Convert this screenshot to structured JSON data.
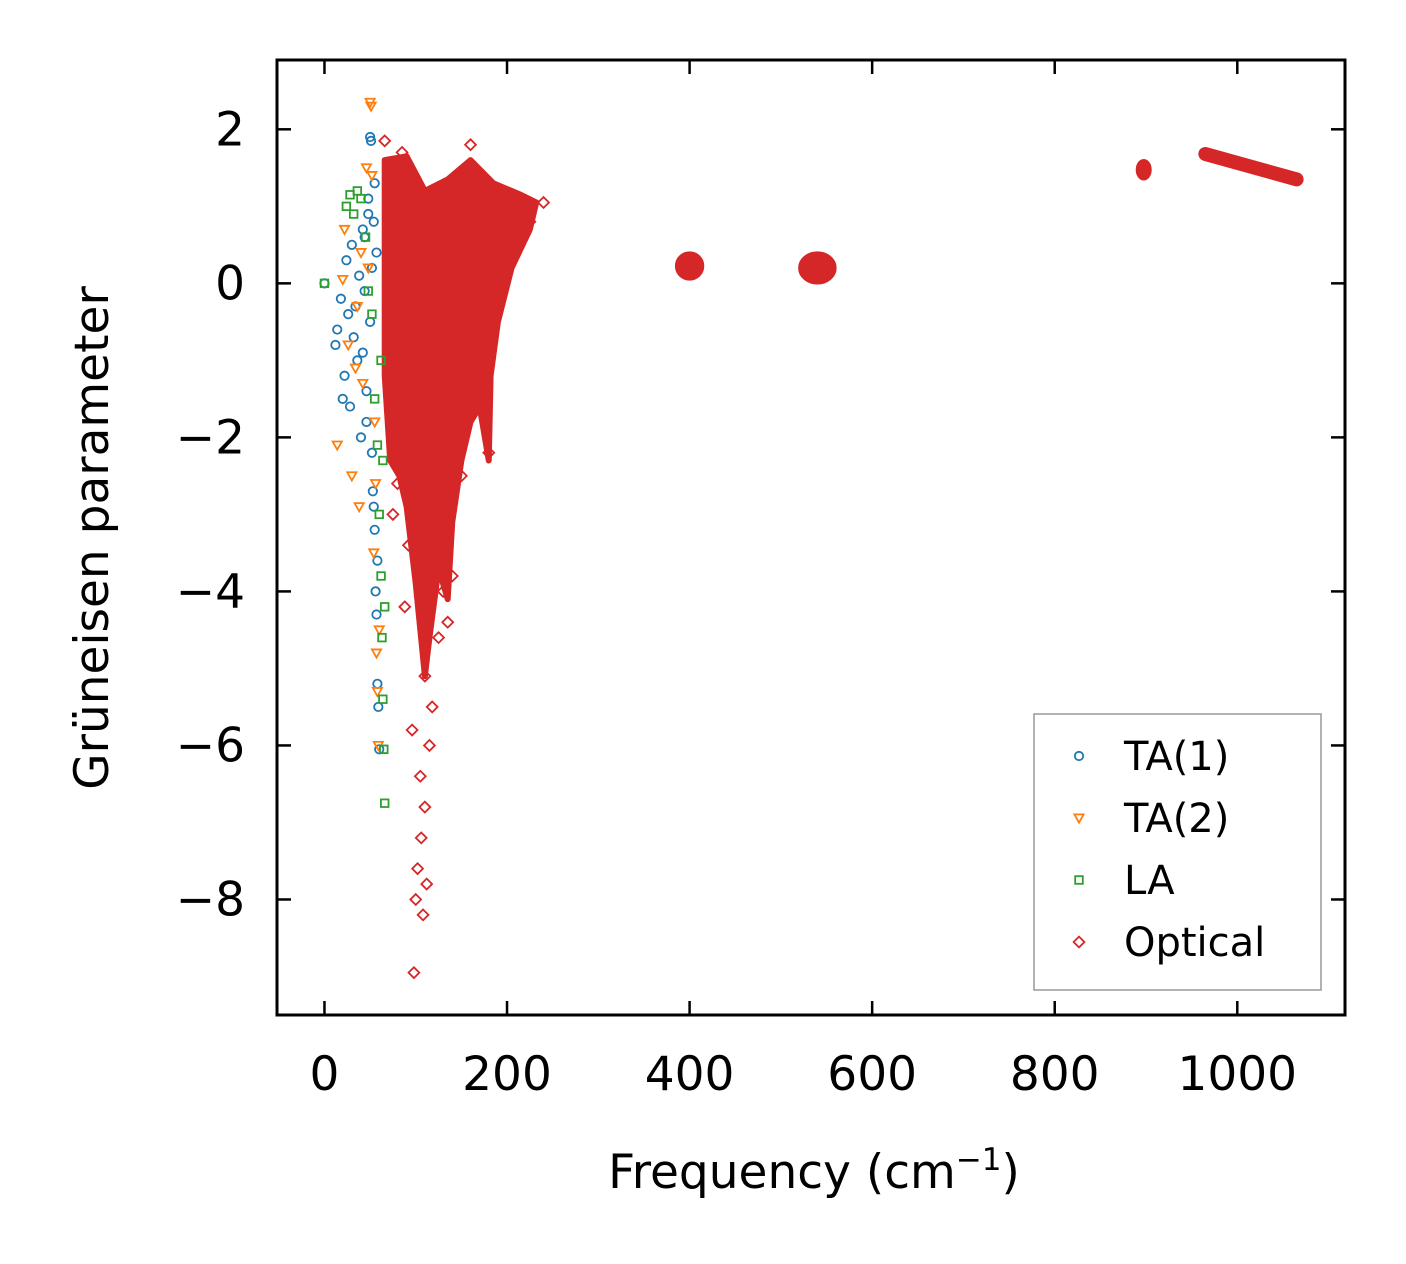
{
  "chart_data": {
    "type": "scatter",
    "title": "",
    "xlabel": "Frequency (cm",
    "xlabel_sup": "−1",
    "xlabel_suffix": ")",
    "ylabel": "Grüneisen parameter",
    "xlim": [
      -52,
      1118
    ],
    "ylim": [
      -9.5,
      2.9
    ],
    "x_ticks": [
      0,
      200,
      400,
      600,
      800,
      1000
    ],
    "x_tick_labels": [
      "0",
      "200",
      "400",
      "600",
      "800",
      "1000"
    ],
    "y_ticks": [
      2,
      0,
      -2,
      -4,
      -6,
      -8
    ],
    "y_tick_labels": [
      "2",
      "0",
      "−2",
      "−4",
      "−6",
      "−8"
    ],
    "grid": false,
    "legend_position": "bottom-right",
    "series": [
      {
        "name": "TA(1)",
        "marker": "circle",
        "color": "#1f77b4",
        "points": [
          [
            0,
            0
          ],
          [
            12,
            -0.8
          ],
          [
            14,
            -0.6
          ],
          [
            18,
            -0.2
          ],
          [
            20,
            -1.5
          ],
          [
            22,
            -1.2
          ],
          [
            24,
            0.3
          ],
          [
            26,
            -0.4
          ],
          [
            28,
            -1.6
          ],
          [
            30,
            0.5
          ],
          [
            32,
            -0.7
          ],
          [
            34,
            -0.3
          ],
          [
            36,
            -1.0
          ],
          [
            38,
            0.1
          ],
          [
            40,
            -2.0
          ],
          [
            42,
            -0.9
          ],
          [
            44,
            0.6
          ],
          [
            46,
            -1.4
          ],
          [
            48,
            1.1
          ],
          [
            50,
            1.9
          ],
          [
            51,
            1.85
          ],
          [
            52,
            -2.2
          ],
          [
            53,
            -2.7
          ],
          [
            54,
            0.8
          ],
          [
            55,
            -3.2
          ],
          [
            56,
            -4.0
          ],
          [
            57,
            -4.3
          ],
          [
            58,
            -5.2
          ],
          [
            59,
            -5.5
          ],
          [
            60,
            -6.05
          ],
          [
            52,
            0.2
          ],
          [
            50,
            -0.5
          ],
          [
            48,
            0.9
          ],
          [
            55,
            1.3
          ],
          [
            57,
            0.4
          ],
          [
            46,
            -1.8
          ],
          [
            54,
            -2.9
          ],
          [
            58,
            -3.6
          ],
          [
            44,
            -0.1
          ],
          [
            42,
            0.7
          ]
        ]
      },
      {
        "name": "TA(2)",
        "marker": "triangle-down",
        "color": "#ff7f0e",
        "points": [
          [
            14,
            -2.1
          ],
          [
            20,
            0.05
          ],
          [
            22,
            0.7
          ],
          [
            26,
            -0.8
          ],
          [
            30,
            -2.5
          ],
          [
            34,
            -1.1
          ],
          [
            38,
            -2.9
          ],
          [
            42,
            -1.3
          ],
          [
            46,
            1.5
          ],
          [
            50,
            2.35
          ],
          [
            51,
            2.3
          ],
          [
            52,
            1.4
          ],
          [
            54,
            -3.5
          ],
          [
            55,
            -1.8
          ],
          [
            56,
            -2.6
          ],
          [
            57,
            -4.8
          ],
          [
            58,
            -5.3
          ],
          [
            59,
            -6.0
          ],
          [
            60,
            -4.5
          ],
          [
            48,
            0.2
          ],
          [
            36,
            -0.3
          ],
          [
            40,
            0.4
          ]
        ]
      },
      {
        "name": "LA",
        "marker": "square",
        "color": "#2ca02c",
        "points": [
          [
            0,
            0
          ],
          [
            24,
            1.0
          ],
          [
            28,
            1.15
          ],
          [
            32,
            0.9
          ],
          [
            36,
            1.2
          ],
          [
            40,
            1.1
          ],
          [
            45,
            0.6
          ],
          [
            48,
            -0.1
          ],
          [
            52,
            -0.4
          ],
          [
            55,
            -1.5
          ],
          [
            58,
            -2.1
          ],
          [
            60,
            -3.0
          ],
          [
            62,
            -3.8
          ],
          [
            63,
            -4.6
          ],
          [
            64,
            -5.4
          ],
          [
            65,
            -6.05
          ],
          [
            66,
            -6.75
          ],
          [
            62,
            -1.0
          ],
          [
            64,
            -2.3
          ],
          [
            66,
            -4.2
          ]
        ]
      },
      {
        "name": "Optical",
        "marker": "diamond",
        "color": "#d62728",
        "points": [
          [
            66,
            1.85
          ],
          [
            85,
            1.7
          ],
          [
            95,
            1.2
          ],
          [
            110,
            -5.1
          ],
          [
            100,
            -8.0
          ],
          [
            98,
            -8.95
          ],
          [
            102,
            -7.6
          ],
          [
            105,
            -6.4
          ],
          [
            106,
            -7.2
          ],
          [
            108,
            -8.2
          ],
          [
            110,
            -6.8
          ],
          [
            112,
            -7.8
          ],
          [
            115,
            -6.0
          ],
          [
            118,
            -5.5
          ],
          [
            125,
            -4.6
          ],
          [
            130,
            -4.0
          ],
          [
            135,
            -4.4
          ],
          [
            140,
            -3.8
          ],
          [
            150,
            -2.5
          ],
          [
            160,
            1.8
          ],
          [
            170,
            -1.6
          ],
          [
            180,
            -2.2
          ],
          [
            240,
            1.05
          ],
          [
            225,
            0.8
          ],
          [
            72,
            -1.5
          ],
          [
            75,
            -3.0
          ],
          [
            80,
            -2.6
          ],
          [
            88,
            -4.2
          ],
          [
            92,
            -3.4
          ],
          [
            96,
            -5.8
          ]
        ]
      }
    ],
    "clusters": [
      {
        "series": "Optical",
        "x_range": [
          385,
          415
        ],
        "y_range": [
          0.1,
          0.35
        ]
      },
      {
        "series": "Optical",
        "x_range": [
          520,
          560
        ],
        "y_range": [
          0.05,
          0.35
        ]
      },
      {
        "series": "Optical",
        "x_range": [
          890,
          905
        ],
        "y_range": [
          1.4,
          1.55
        ]
      },
      {
        "series": "Optical",
        "x_range": [
          965,
          1065
        ],
        "y_range": [
          1.35,
          1.68
        ]
      }
    ],
    "dense_regions": [
      {
        "series": "Optical",
        "x_range": [
          65,
          245
        ],
        "y_range": [
          -5.0,
          1.65
        ],
        "description": "dense optical band"
      }
    ]
  }
}
